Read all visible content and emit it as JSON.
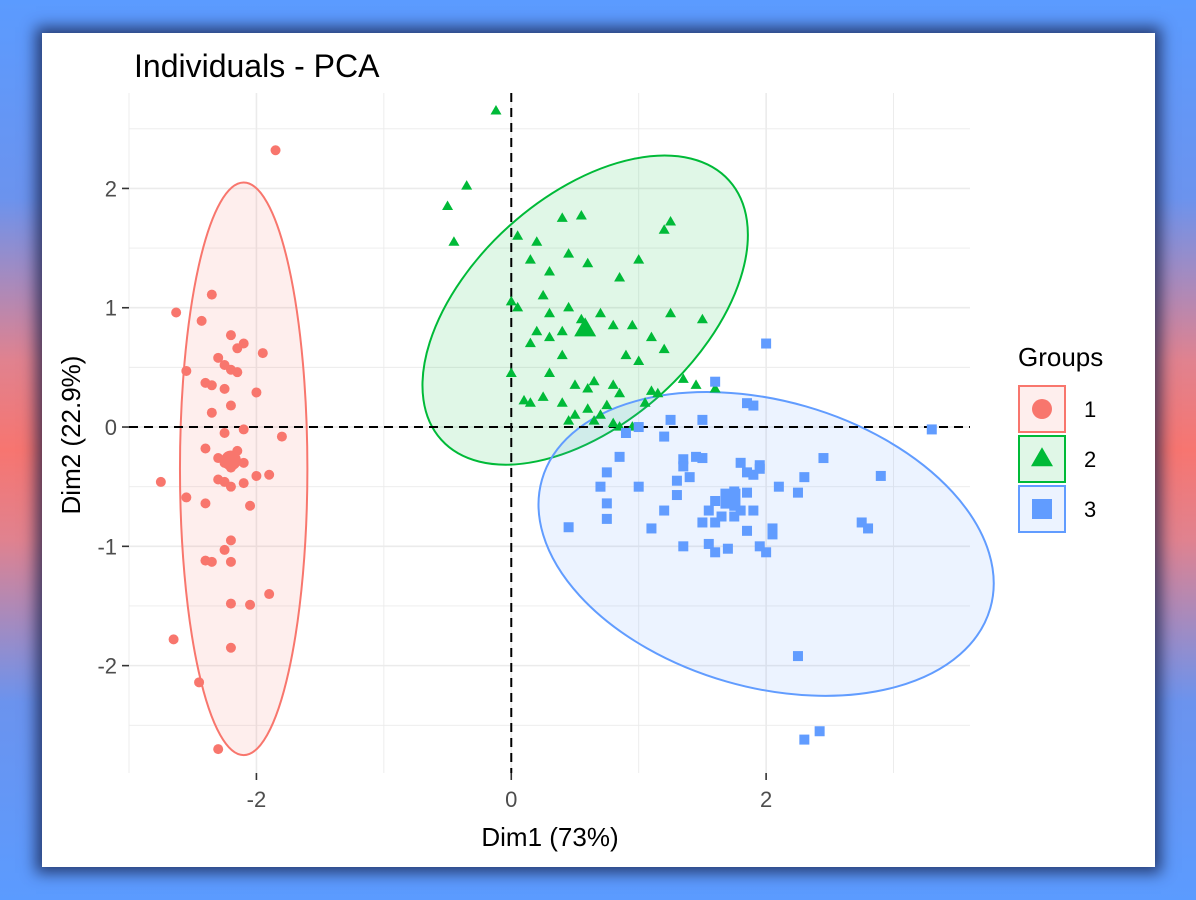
{
  "chart_data": {
    "type": "scatter",
    "title": "Individuals - PCA",
    "xlabel": "Dim1 (73%)",
    "ylabel": "Dim2 (22.9%)",
    "xlim": [
      -3.0,
      3.6
    ],
    "ylim": [
      -2.9,
      2.8
    ],
    "xticks": [
      -2,
      0,
      2
    ],
    "yticks": [
      -2,
      -1,
      0,
      1,
      2
    ],
    "xtick_labels": [
      "-2",
      "0",
      "2"
    ],
    "ytick_labels": [
      "-2",
      "-1",
      "0",
      "1",
      "2"
    ],
    "grid": true,
    "reference_lines": {
      "x": 0,
      "y": 0,
      "style": "dashed"
    },
    "legend": {
      "title": "Groups",
      "position": "right",
      "entries": [
        {
          "label": "1",
          "marker": "circle",
          "color": "#f8766d"
        },
        {
          "label": "2",
          "marker": "triangle",
          "color": "#00ba38"
        },
        {
          "label": "3",
          "marker": "square",
          "color": "#619cff"
        }
      ]
    },
    "series": [
      {
        "name": "1",
        "marker": "circle",
        "color": "#f8766d",
        "ellipse": {
          "cx": -2.1,
          "cy": -0.35,
          "rx": 0.5,
          "ry": 2.4,
          "angle": 0
        },
        "centroid": [
          -2.2,
          -0.28
        ],
        "points": [
          [
            -1.85,
            2.32
          ],
          [
            -2.35,
            1.11
          ],
          [
            -2.63,
            0.96
          ],
          [
            -2.43,
            0.89
          ],
          [
            -2.2,
            0.77
          ],
          [
            -2.1,
            0.7
          ],
          [
            -2.15,
            0.66
          ],
          [
            -1.95,
            0.62
          ],
          [
            -2.3,
            0.58
          ],
          [
            -2.25,
            0.52
          ],
          [
            -2.2,
            0.48
          ],
          [
            -2.15,
            0.46
          ],
          [
            -2.55,
            0.47
          ],
          [
            -2.4,
            0.37
          ],
          [
            -2.35,
            0.35
          ],
          [
            -2.25,
            0.32
          ],
          [
            -2.0,
            0.29
          ],
          [
            -2.2,
            0.18
          ],
          [
            -2.35,
            0.12
          ],
          [
            -2.1,
            -0.02
          ],
          [
            -2.25,
            -0.05
          ],
          [
            -1.8,
            -0.08
          ],
          [
            -2.4,
            -0.18
          ],
          [
            -2.15,
            -0.2
          ],
          [
            -2.3,
            -0.26
          ],
          [
            -2.2,
            -0.28
          ],
          [
            -2.1,
            -0.3
          ],
          [
            -2.25,
            -0.3
          ],
          [
            -2.2,
            -0.34
          ],
          [
            -1.9,
            -0.4
          ],
          [
            -2.0,
            -0.41
          ],
          [
            -2.3,
            -0.44
          ],
          [
            -2.25,
            -0.46
          ],
          [
            -2.1,
            -0.47
          ],
          [
            -2.2,
            -0.5
          ],
          [
            -2.75,
            -0.46
          ],
          [
            -2.55,
            -0.59
          ],
          [
            -2.4,
            -0.64
          ],
          [
            -2.05,
            -0.66
          ],
          [
            -2.2,
            -0.95
          ],
          [
            -2.25,
            -1.03
          ],
          [
            -2.4,
            -1.12
          ],
          [
            -2.35,
            -1.13
          ],
          [
            -2.2,
            -1.13
          ],
          [
            -1.9,
            -1.4
          ],
          [
            -2.2,
            -1.48
          ],
          [
            -2.05,
            -1.49
          ],
          [
            -2.65,
            -1.78
          ],
          [
            -2.2,
            -1.85
          ],
          [
            -2.45,
            -2.14
          ],
          [
            -2.3,
            -2.7
          ]
        ]
      },
      {
        "name": "2",
        "marker": "triangle",
        "color": "#00ba38",
        "ellipse": {
          "cx": 0.58,
          "cy": 0.98,
          "rx": 1.52,
          "ry": 0.95,
          "angle": -42
        },
        "centroid": [
          0.58,
          0.82
        ],
        "points": [
          [
            -0.12,
            2.65
          ],
          [
            -0.5,
            1.85
          ],
          [
            -0.35,
            2.02
          ],
          [
            -0.45,
            1.55
          ],
          [
            0.05,
            1.6
          ],
          [
            0.2,
            1.55
          ],
          [
            0.4,
            1.75
          ],
          [
            0.55,
            1.77
          ],
          [
            0.15,
            1.4
          ],
          [
            0.3,
            1.3
          ],
          [
            0.45,
            1.45
          ],
          [
            0.6,
            1.37
          ],
          [
            0.85,
            1.25
          ],
          [
            1.0,
            1.4
          ],
          [
            1.2,
            1.65
          ],
          [
            1.25,
            1.72
          ],
          [
            0.0,
            1.05
          ],
          [
            0.05,
            1.0
          ],
          [
            0.25,
            1.1
          ],
          [
            0.3,
            0.95
          ],
          [
            0.45,
            1.0
          ],
          [
            0.4,
            0.8
          ],
          [
            0.55,
            0.9
          ],
          [
            0.7,
            0.95
          ],
          [
            0.2,
            0.8
          ],
          [
            0.15,
            0.7
          ],
          [
            0.3,
            0.75
          ],
          [
            0.4,
            0.6
          ],
          [
            0.8,
            0.85
          ],
          [
            0.95,
            0.85
          ],
          [
            1.25,
            0.95
          ],
          [
            1.5,
            0.9
          ],
          [
            1.1,
            0.75
          ],
          [
            1.2,
            0.65
          ],
          [
            0.9,
            0.6
          ],
          [
            1.0,
            0.55
          ],
          [
            1.35,
            0.4
          ],
          [
            1.45,
            0.35
          ],
          [
            1.6,
            0.32
          ],
          [
            0.0,
            0.45
          ],
          [
            0.3,
            0.45
          ],
          [
            0.5,
            0.35
          ],
          [
            0.6,
            0.32
          ],
          [
            0.65,
            0.38
          ],
          [
            0.8,
            0.35
          ],
          [
            0.85,
            0.28
          ],
          [
            1.1,
            0.3
          ],
          [
            1.15,
            0.28
          ],
          [
            1.05,
            0.2
          ],
          [
            0.1,
            0.22
          ],
          [
            0.15,
            0.2
          ],
          [
            0.25,
            0.25
          ],
          [
            0.4,
            0.2
          ],
          [
            0.5,
            0.1
          ],
          [
            0.6,
            0.15
          ],
          [
            0.75,
            0.18
          ],
          [
            0.7,
            0.1
          ],
          [
            0.45,
            0.05
          ],
          [
            0.65,
            0.05
          ],
          [
            0.8,
            0.03
          ],
          [
            0.85,
            0.0
          ],
          [
            0.95,
            0.0
          ]
        ]
      },
      {
        "name": "3",
        "marker": "square",
        "color": "#619cff",
        "ellipse": {
          "cx": 2.0,
          "cy": -0.98,
          "rx": 1.83,
          "ry": 1.2,
          "angle": 16
        },
        "centroid": [
          1.72,
          -0.6
        ],
        "points": [
          [
            2.0,
            0.7
          ],
          [
            1.6,
            0.38
          ],
          [
            1.85,
            0.2
          ],
          [
            1.9,
            0.18
          ],
          [
            3.3,
            -0.02
          ],
          [
            1.25,
            0.06
          ],
          [
            1.5,
            0.06
          ],
          [
            1.0,
            0.0
          ],
          [
            0.9,
            -0.05
          ],
          [
            1.2,
            -0.08
          ],
          [
            0.85,
            -0.25
          ],
          [
            1.45,
            -0.25
          ],
          [
            1.5,
            -0.26
          ],
          [
            1.35,
            -0.27
          ],
          [
            1.8,
            -0.3
          ],
          [
            1.95,
            -0.32
          ],
          [
            2.45,
            -0.26
          ],
          [
            1.35,
            -0.33
          ],
          [
            1.85,
            -0.38
          ],
          [
            1.9,
            -0.4
          ],
          [
            1.95,
            -0.35
          ],
          [
            2.3,
            -0.42
          ],
          [
            2.9,
            -0.41
          ],
          [
            1.4,
            -0.42
          ],
          [
            1.3,
            -0.45
          ],
          [
            0.75,
            -0.38
          ],
          [
            0.7,
            -0.5
          ],
          [
            1.0,
            -0.5
          ],
          [
            1.3,
            -0.57
          ],
          [
            1.75,
            -0.54
          ],
          [
            1.85,
            -0.55
          ],
          [
            2.1,
            -0.5
          ],
          [
            2.25,
            -0.55
          ],
          [
            0.75,
            -0.64
          ],
          [
            1.2,
            -0.7
          ],
          [
            1.6,
            -0.62
          ],
          [
            1.8,
            -0.7
          ],
          [
            1.9,
            -0.7
          ],
          [
            1.55,
            -0.7
          ],
          [
            1.75,
            -0.66
          ],
          [
            0.45,
            -0.84
          ],
          [
            0.75,
            -0.77
          ],
          [
            1.1,
            -0.85
          ],
          [
            1.5,
            -0.8
          ],
          [
            1.6,
            -0.8
          ],
          [
            1.65,
            -0.75
          ],
          [
            1.75,
            -0.75
          ],
          [
            1.85,
            -0.87
          ],
          [
            2.05,
            -0.85
          ],
          [
            2.05,
            -0.9
          ],
          [
            2.75,
            -0.8
          ],
          [
            2.8,
            -0.85
          ],
          [
            1.35,
            -1.0
          ],
          [
            1.55,
            -0.98
          ],
          [
            1.7,
            -1.02
          ],
          [
            1.95,
            -1.0
          ],
          [
            2.0,
            -1.05
          ],
          [
            1.6,
            -1.05
          ],
          [
            2.25,
            -1.92
          ],
          [
            2.3,
            -2.62
          ],
          [
            2.42,
            -2.55
          ]
        ]
      }
    ]
  }
}
